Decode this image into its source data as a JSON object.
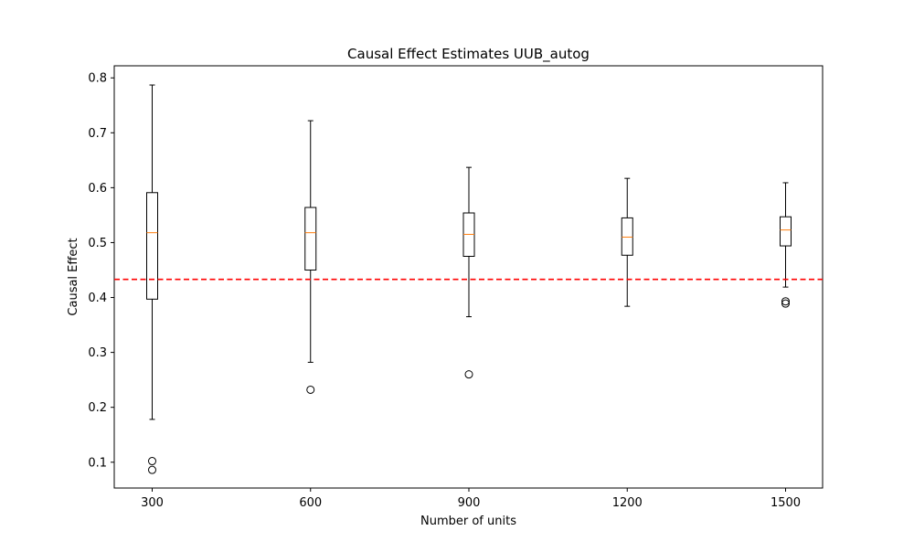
{
  "chart_data": {
    "type": "boxplot",
    "title": "Causal Effect Estimates UUB_autog",
    "xlabel": "Number of units",
    "ylabel": "Causal Effect",
    "categories": [
      "300",
      "600",
      "900",
      "1200",
      "1500"
    ],
    "ylim": [
      0.053,
      0.822
    ],
    "yticks": [
      "0.1",
      "0.2",
      "0.3",
      "0.4",
      "0.5",
      "0.6",
      "0.7",
      "0.8"
    ],
    "boxes": [
      {
        "category": "300",
        "whisker_low": 0.178,
        "q1": 0.397,
        "median": 0.518,
        "q3": 0.591,
        "whisker_high": 0.787,
        "outliers": [
          0.102,
          0.086
        ]
      },
      {
        "category": "600",
        "whisker_low": 0.282,
        "q1": 0.45,
        "median": 0.518,
        "q3": 0.564,
        "whisker_high": 0.722,
        "outliers": [
          0.232
        ]
      },
      {
        "category": "900",
        "whisker_low": 0.365,
        "q1": 0.475,
        "median": 0.515,
        "q3": 0.554,
        "whisker_high": 0.637,
        "outliers": [
          0.26
        ]
      },
      {
        "category": "1200",
        "whisker_low": 0.384,
        "q1": 0.477,
        "median": 0.51,
        "q3": 0.545,
        "whisker_high": 0.617,
        "outliers": []
      },
      {
        "category": "1500",
        "whisker_low": 0.419,
        "q1": 0.494,
        "median": 0.523,
        "q3": 0.547,
        "whisker_high": 0.609,
        "outliers": [
          0.393,
          0.389
        ]
      }
    ],
    "reference_line": {
      "value": 0.433,
      "style": "dashed",
      "color": "#e31a1c"
    },
    "colors": {
      "box": "#000000",
      "median": "#ff7f0e",
      "reference": "#ff0000"
    },
    "grid": false,
    "legend": "none"
  }
}
